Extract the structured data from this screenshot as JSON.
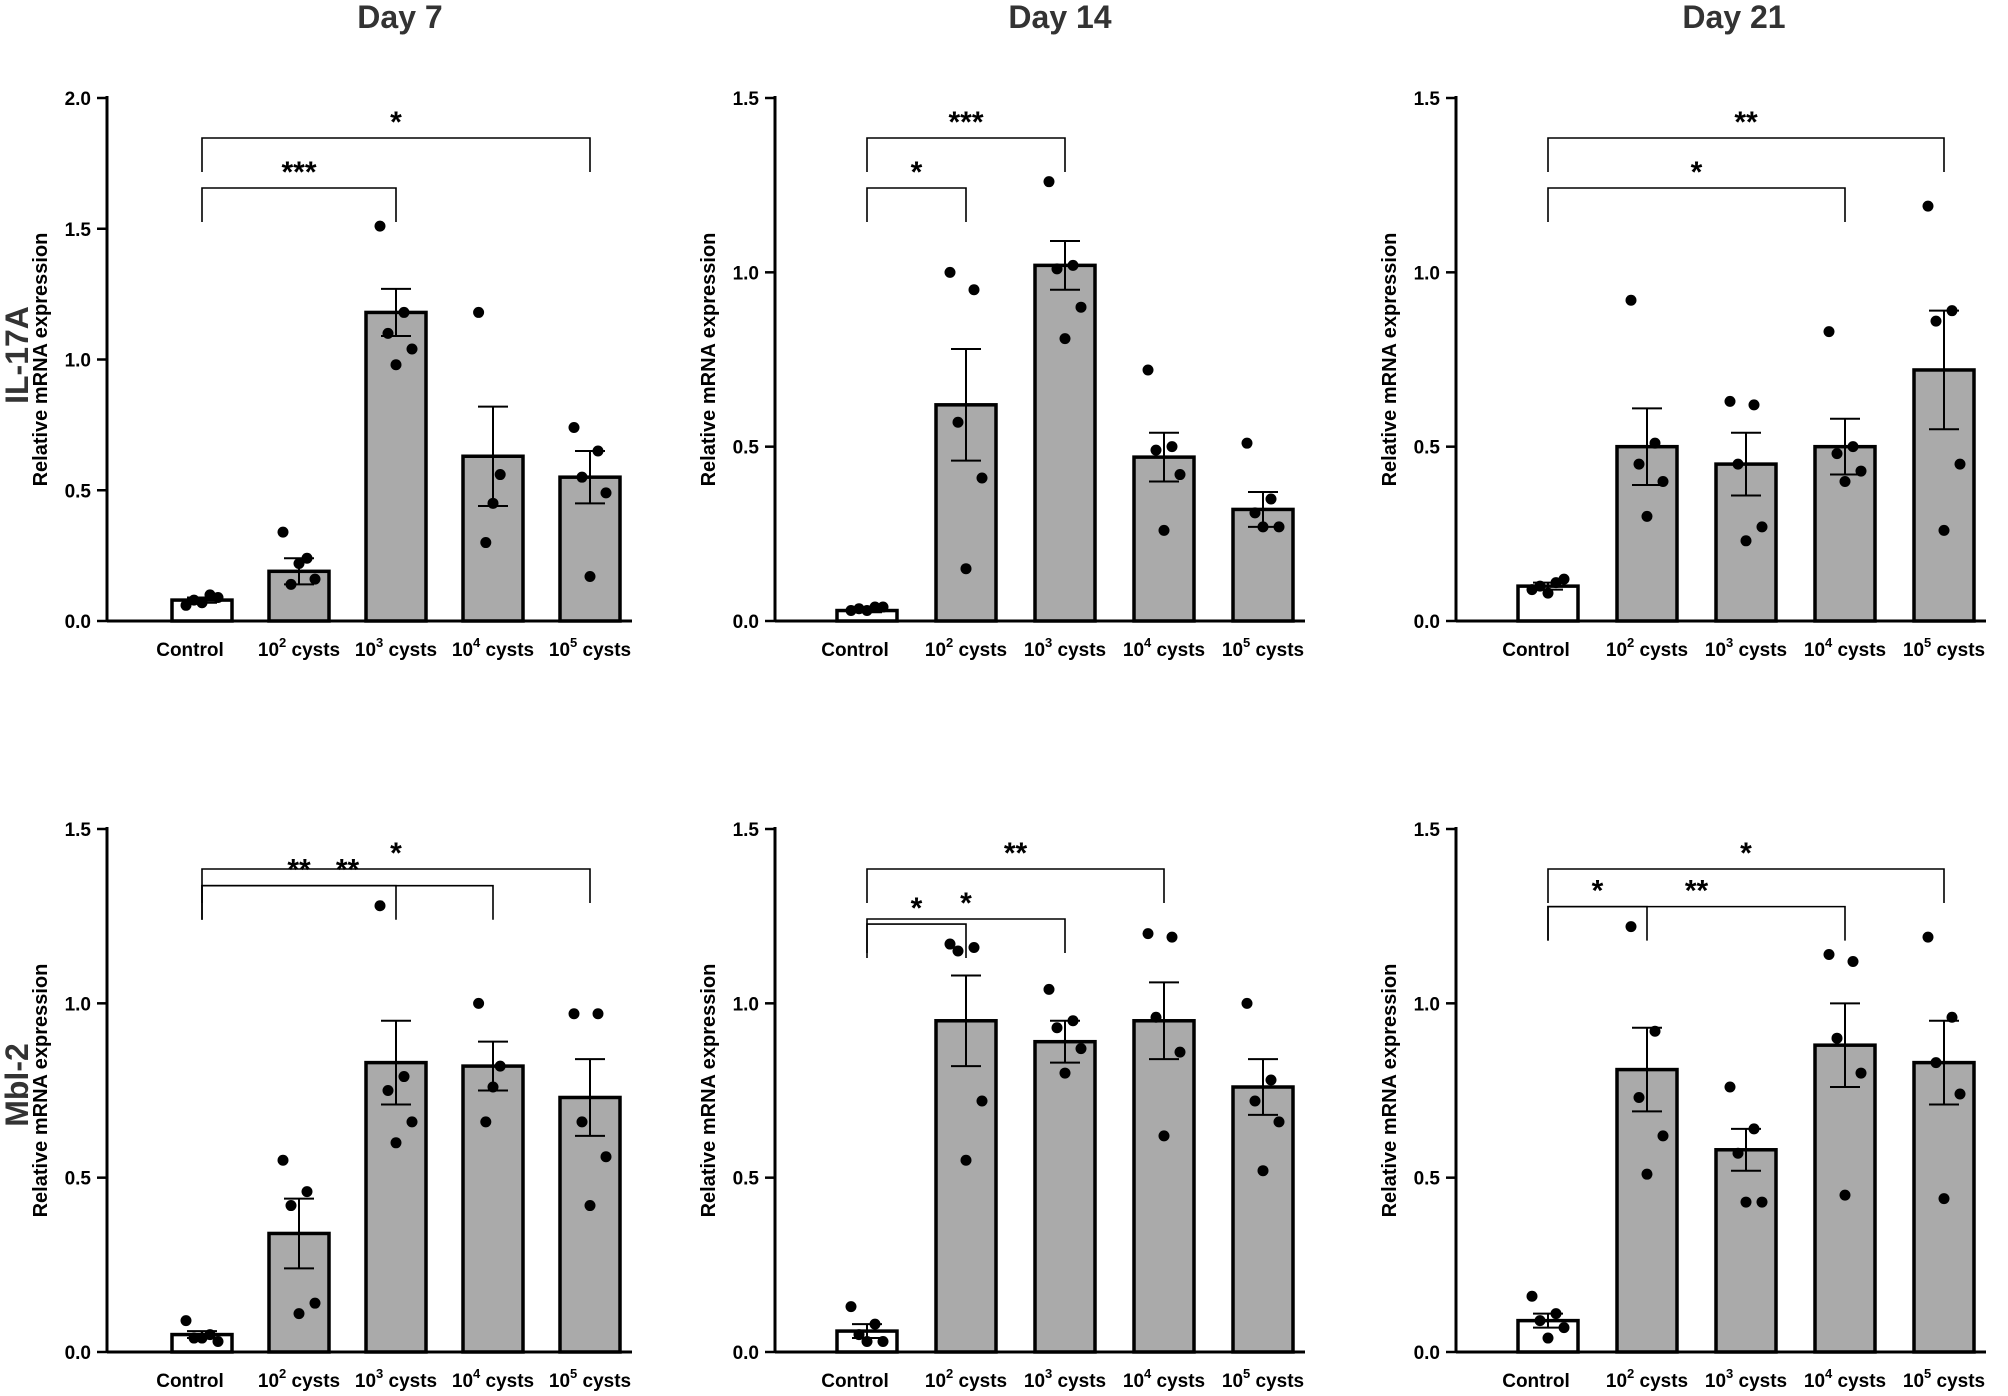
{
  "figure": {
    "column_titles": [
      "Day 7",
      "Day 14",
      "Day 21"
    ],
    "row_titles": [
      "IL-17A",
      "Mbl-2"
    ],
    "colors": {
      "control_bar": "#ffffff",
      "treatment_bar": "#aaaaaa",
      "points": "#000000"
    }
  },
  "chart_data": [
    {
      "type": "bar",
      "row_title": "IL-17A",
      "column_title": "Day 7",
      "categories": [
        "Control",
        "10^2 cysts",
        "10^3 cysts",
        "10^4 cysts",
        "10^5 cysts"
      ],
      "ylabel": "Relative mRNA expression",
      "ylim": [
        0,
        2.0
      ],
      "yticks": [
        0.0,
        0.5,
        1.0,
        1.5,
        2.0
      ],
      "ytick_labels": [
        "0.0",
        "0.5",
        "1.0",
        "1.5",
        "2.0"
      ],
      "values": [
        0.08,
        0.19,
        1.18,
        0.63,
        0.55
      ],
      "sem": [
        0.01,
        0.05,
        0.09,
        0.19,
        0.1
      ],
      "points": [
        [
          0.06,
          0.1,
          0.08,
          0.09,
          0.07
        ],
        [
          0.34,
          0.24,
          0.14,
          0.16,
          0.22
        ],
        [
          1.51,
          1.18,
          1.1,
          1.04,
          0.98
        ],
        [
          1.18,
          0.56,
          0.45,
          0.3
        ],
        [
          0.74,
          0.65,
          0.55,
          0.49,
          0.17
        ]
      ],
      "comparisons": [
        {
          "from": 0,
          "to": 2,
          "label": "***"
        },
        {
          "from": 0,
          "to": 4,
          "label": "*"
        }
      ]
    },
    {
      "type": "bar",
      "row_title": "IL-17A",
      "column_title": "Day 14",
      "categories": [
        "Control",
        "10^2 cysts",
        "10^3 cysts",
        "10^4 cysts",
        "10^5 cysts"
      ],
      "ylabel": "Relative mRNA expression",
      "ylim": [
        0,
        1.5
      ],
      "yticks": [
        0.0,
        0.5,
        1.0,
        1.5
      ],
      "ytick_labels": [
        "0.0",
        "0.5",
        "1.0",
        "1.5"
      ],
      "values": [
        0.03,
        0.62,
        1.02,
        0.47,
        0.32
      ],
      "sem": [
        0.005,
        0.16,
        0.07,
        0.07,
        0.05
      ],
      "points": [
        [
          0.03,
          0.04,
          0.035,
          0.04,
          0.03
        ],
        [
          1.0,
          0.95,
          0.57,
          0.41,
          0.15
        ],
        [
          1.26,
          1.02,
          1.01,
          0.9,
          0.81
        ],
        [
          0.72,
          0.5,
          0.49,
          0.42,
          0.26
        ],
        [
          0.51,
          0.35,
          0.31,
          0.27,
          0.27
        ]
      ],
      "comparisons": [
        {
          "from": 0,
          "to": 1,
          "label": "*"
        },
        {
          "from": 0,
          "to": 2,
          "label": "***"
        }
      ]
    },
    {
      "type": "bar",
      "row_title": "IL-17A",
      "column_title": "Day 21",
      "categories": [
        "Control",
        "10^2 cysts",
        "10^3 cysts",
        "10^4 cysts",
        "10^5 cysts"
      ],
      "ylabel": "Relative mRNA expression",
      "ylim": [
        0,
        1.5
      ],
      "yticks": [
        0.0,
        0.5,
        1.0,
        1.5
      ],
      "ytick_labels": [
        "0.0",
        "0.5",
        "1.0",
        "1.5"
      ],
      "values": [
        0.1,
        0.5,
        0.45,
        0.5,
        0.72
      ],
      "sem": [
        0.01,
        0.11,
        0.09,
        0.08,
        0.17
      ],
      "points": [
        [
          0.09,
          0.11,
          0.1,
          0.12,
          0.08
        ],
        [
          0.92,
          0.51,
          0.45,
          0.4,
          0.3
        ],
        [
          0.63,
          0.62,
          0.45,
          0.27,
          0.23
        ],
        [
          0.83,
          0.5,
          0.48,
          0.43,
          0.4
        ],
        [
          1.19,
          0.89,
          0.86,
          0.45,
          0.26
        ]
      ],
      "comparisons": [
        {
          "from": 0,
          "to": 3,
          "label": "*"
        },
        {
          "from": 0,
          "to": 4,
          "label": "**"
        }
      ]
    },
    {
      "type": "bar",
      "row_title": "Mbl-2",
      "column_title": "Day 7",
      "categories": [
        "Control",
        "10^2 cysts",
        "10^3 cysts",
        "10^4 cysts",
        "10^5 cysts"
      ],
      "ylabel": "Relative mRNA expression",
      "ylim": [
        0,
        1.5
      ],
      "yticks": [
        0.0,
        0.5,
        1.0,
        1.5
      ],
      "ytick_labels": [
        "0.0",
        "0.5",
        "1.0",
        "1.5"
      ],
      "values": [
        0.05,
        0.34,
        0.83,
        0.82,
        0.73
      ],
      "sem": [
        0.01,
        0.1,
        0.12,
        0.07,
        0.11
      ],
      "points": [
        [
          0.09,
          0.05,
          0.04,
          0.03,
          0.04
        ],
        [
          0.55,
          0.46,
          0.42,
          0.14,
          0.11
        ],
        [
          1.28,
          0.79,
          0.75,
          0.66,
          0.6
        ],
        [
          1.0,
          0.82,
          0.76,
          0.66
        ],
        [
          0.97,
          0.97,
          0.66,
          0.56,
          0.42
        ]
      ],
      "comparisons": [
        {
          "from": 0,
          "to": 2,
          "label": "**"
        },
        {
          "from": 0,
          "to": 3,
          "label": "**"
        },
        {
          "from": 0,
          "to": 4,
          "label": "*"
        }
      ]
    },
    {
      "type": "bar",
      "row_title": "Mbl-2",
      "column_title": "Day 14",
      "categories": [
        "Control",
        "10^2 cysts",
        "10^3 cysts",
        "10^4 cysts",
        "10^5 cysts"
      ],
      "ylabel": "Relative mRNA expression",
      "ylim": [
        0,
        1.5
      ],
      "yticks": [
        0.0,
        0.5,
        1.0,
        1.5
      ],
      "ytick_labels": [
        "0.0",
        "0.5",
        "1.0",
        "1.5"
      ],
      "values": [
        0.06,
        0.95,
        0.89,
        0.95,
        0.76
      ],
      "sem": [
        0.02,
        0.13,
        0.06,
        0.11,
        0.08
      ],
      "points": [
        [
          0.13,
          0.08,
          0.05,
          0.03,
          0.03
        ],
        [
          1.17,
          1.16,
          1.15,
          0.72,
          0.55
        ],
        [
          1.04,
          0.95,
          0.93,
          0.87,
          0.8
        ],
        [
          1.2,
          1.19,
          0.96,
          0.86,
          0.62
        ],
        [
          1.0,
          0.78,
          0.72,
          0.66,
          0.52
        ]
      ],
      "comparisons": [
        {
          "from": 0,
          "to": 1,
          "label": "*"
        },
        {
          "from": 0,
          "to": 2,
          "label": "*"
        },
        {
          "from": 0,
          "to": 3,
          "label": "**"
        }
      ]
    },
    {
      "type": "bar",
      "row_title": "Mbl-2",
      "column_title": "Day 21",
      "categories": [
        "Control",
        "10^2 cysts",
        "10^3 cysts",
        "10^4 cysts",
        "10^5 cysts"
      ],
      "ylabel": "Relative mRNA expression",
      "ylim": [
        0,
        1.5
      ],
      "yticks": [
        0.0,
        0.5,
        1.0,
        1.5
      ],
      "ytick_labels": [
        "0.0",
        "0.5",
        "1.0",
        "1.5"
      ],
      "values": [
        0.09,
        0.81,
        0.58,
        0.88,
        0.83
      ],
      "sem": [
        0.02,
        0.12,
        0.06,
        0.12,
        0.12
      ],
      "points": [
        [
          0.16,
          0.11,
          0.09,
          0.07,
          0.04
        ],
        [
          1.22,
          0.92,
          0.73,
          0.62,
          0.51
        ],
        [
          0.76,
          0.64,
          0.57,
          0.43,
          0.43
        ],
        [
          1.14,
          1.12,
          0.9,
          0.8,
          0.45
        ],
        [
          1.19,
          0.96,
          0.83,
          0.74,
          0.44
        ]
      ],
      "comparisons": [
        {
          "from": 0,
          "to": 1,
          "label": "*"
        },
        {
          "from": 0,
          "to": 3,
          "label": "**"
        },
        {
          "from": 0,
          "to": 4,
          "label": "*"
        }
      ]
    }
  ]
}
